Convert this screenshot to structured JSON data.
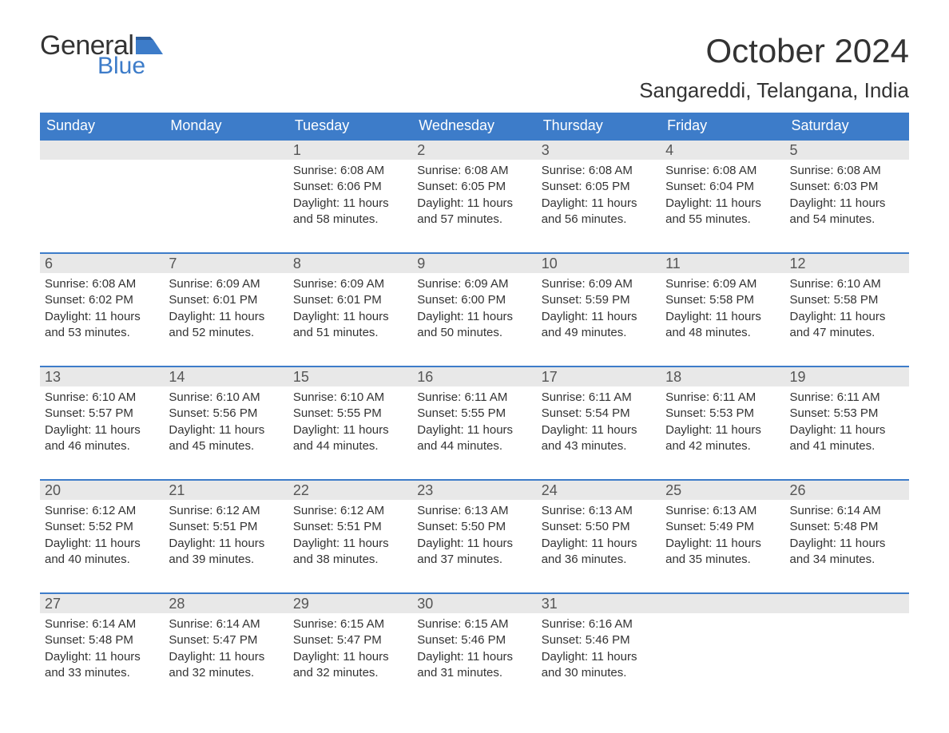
{
  "brand": {
    "word1": "General",
    "word2": "Blue",
    "flag_color": "#3d7cc9"
  },
  "header": {
    "month_title": "October 2024",
    "location": "Sangareddi, Telangana, India"
  },
  "colors": {
    "header_bg": "#3d7cc9",
    "header_text": "#ffffff",
    "daynum_bg": "#e8e8e8",
    "row_border": "#3d7cc9",
    "body_text": "#333333",
    "page_bg": "#ffffff"
  },
  "calendar": {
    "weekdays": [
      "Sunday",
      "Monday",
      "Tuesday",
      "Wednesday",
      "Thursday",
      "Friday",
      "Saturday"
    ],
    "weeks": [
      [
        null,
        null,
        {
          "n": "1",
          "sr": "6:08 AM",
          "ss": "6:06 PM",
          "dl": "11 hours and 58 minutes."
        },
        {
          "n": "2",
          "sr": "6:08 AM",
          "ss": "6:05 PM",
          "dl": "11 hours and 57 minutes."
        },
        {
          "n": "3",
          "sr": "6:08 AM",
          "ss": "6:05 PM",
          "dl": "11 hours and 56 minutes."
        },
        {
          "n": "4",
          "sr": "6:08 AM",
          "ss": "6:04 PM",
          "dl": "11 hours and 55 minutes."
        },
        {
          "n": "5",
          "sr": "6:08 AM",
          "ss": "6:03 PM",
          "dl": "11 hours and 54 minutes."
        }
      ],
      [
        {
          "n": "6",
          "sr": "6:08 AM",
          "ss": "6:02 PM",
          "dl": "11 hours and 53 minutes."
        },
        {
          "n": "7",
          "sr": "6:09 AM",
          "ss": "6:01 PM",
          "dl": "11 hours and 52 minutes."
        },
        {
          "n": "8",
          "sr": "6:09 AM",
          "ss": "6:01 PM",
          "dl": "11 hours and 51 minutes."
        },
        {
          "n": "9",
          "sr": "6:09 AM",
          "ss": "6:00 PM",
          "dl": "11 hours and 50 minutes."
        },
        {
          "n": "10",
          "sr": "6:09 AM",
          "ss": "5:59 PM",
          "dl": "11 hours and 49 minutes."
        },
        {
          "n": "11",
          "sr": "6:09 AM",
          "ss": "5:58 PM",
          "dl": "11 hours and 48 minutes."
        },
        {
          "n": "12",
          "sr": "6:10 AM",
          "ss": "5:58 PM",
          "dl": "11 hours and 47 minutes."
        }
      ],
      [
        {
          "n": "13",
          "sr": "6:10 AM",
          "ss": "5:57 PM",
          "dl": "11 hours and 46 minutes."
        },
        {
          "n": "14",
          "sr": "6:10 AM",
          "ss": "5:56 PM",
          "dl": "11 hours and 45 minutes."
        },
        {
          "n": "15",
          "sr": "6:10 AM",
          "ss": "5:55 PM",
          "dl": "11 hours and 44 minutes."
        },
        {
          "n": "16",
          "sr": "6:11 AM",
          "ss": "5:55 PM",
          "dl": "11 hours and 44 minutes."
        },
        {
          "n": "17",
          "sr": "6:11 AM",
          "ss": "5:54 PM",
          "dl": "11 hours and 43 minutes."
        },
        {
          "n": "18",
          "sr": "6:11 AM",
          "ss": "5:53 PM",
          "dl": "11 hours and 42 minutes."
        },
        {
          "n": "19",
          "sr": "6:11 AM",
          "ss": "5:53 PM",
          "dl": "11 hours and 41 minutes."
        }
      ],
      [
        {
          "n": "20",
          "sr": "6:12 AM",
          "ss": "5:52 PM",
          "dl": "11 hours and 40 minutes."
        },
        {
          "n": "21",
          "sr": "6:12 AM",
          "ss": "5:51 PM",
          "dl": "11 hours and 39 minutes."
        },
        {
          "n": "22",
          "sr": "6:12 AM",
          "ss": "5:51 PM",
          "dl": "11 hours and 38 minutes."
        },
        {
          "n": "23",
          "sr": "6:13 AM",
          "ss": "5:50 PM",
          "dl": "11 hours and 37 minutes."
        },
        {
          "n": "24",
          "sr": "6:13 AM",
          "ss": "5:50 PM",
          "dl": "11 hours and 36 minutes."
        },
        {
          "n": "25",
          "sr": "6:13 AM",
          "ss": "5:49 PM",
          "dl": "11 hours and 35 minutes."
        },
        {
          "n": "26",
          "sr": "6:14 AM",
          "ss": "5:48 PM",
          "dl": "11 hours and 34 minutes."
        }
      ],
      [
        {
          "n": "27",
          "sr": "6:14 AM",
          "ss": "5:48 PM",
          "dl": "11 hours and 33 minutes."
        },
        {
          "n": "28",
          "sr": "6:14 AM",
          "ss": "5:47 PM",
          "dl": "11 hours and 32 minutes."
        },
        {
          "n": "29",
          "sr": "6:15 AM",
          "ss": "5:47 PM",
          "dl": "11 hours and 32 minutes."
        },
        {
          "n": "30",
          "sr": "6:15 AM",
          "ss": "5:46 PM",
          "dl": "11 hours and 31 minutes."
        },
        {
          "n": "31",
          "sr": "6:16 AM",
          "ss": "5:46 PM",
          "dl": "11 hours and 30 minutes."
        },
        null,
        null
      ]
    ],
    "labels": {
      "sunrise": "Sunrise:",
      "sunset": "Sunset:",
      "daylight": "Daylight:"
    }
  }
}
